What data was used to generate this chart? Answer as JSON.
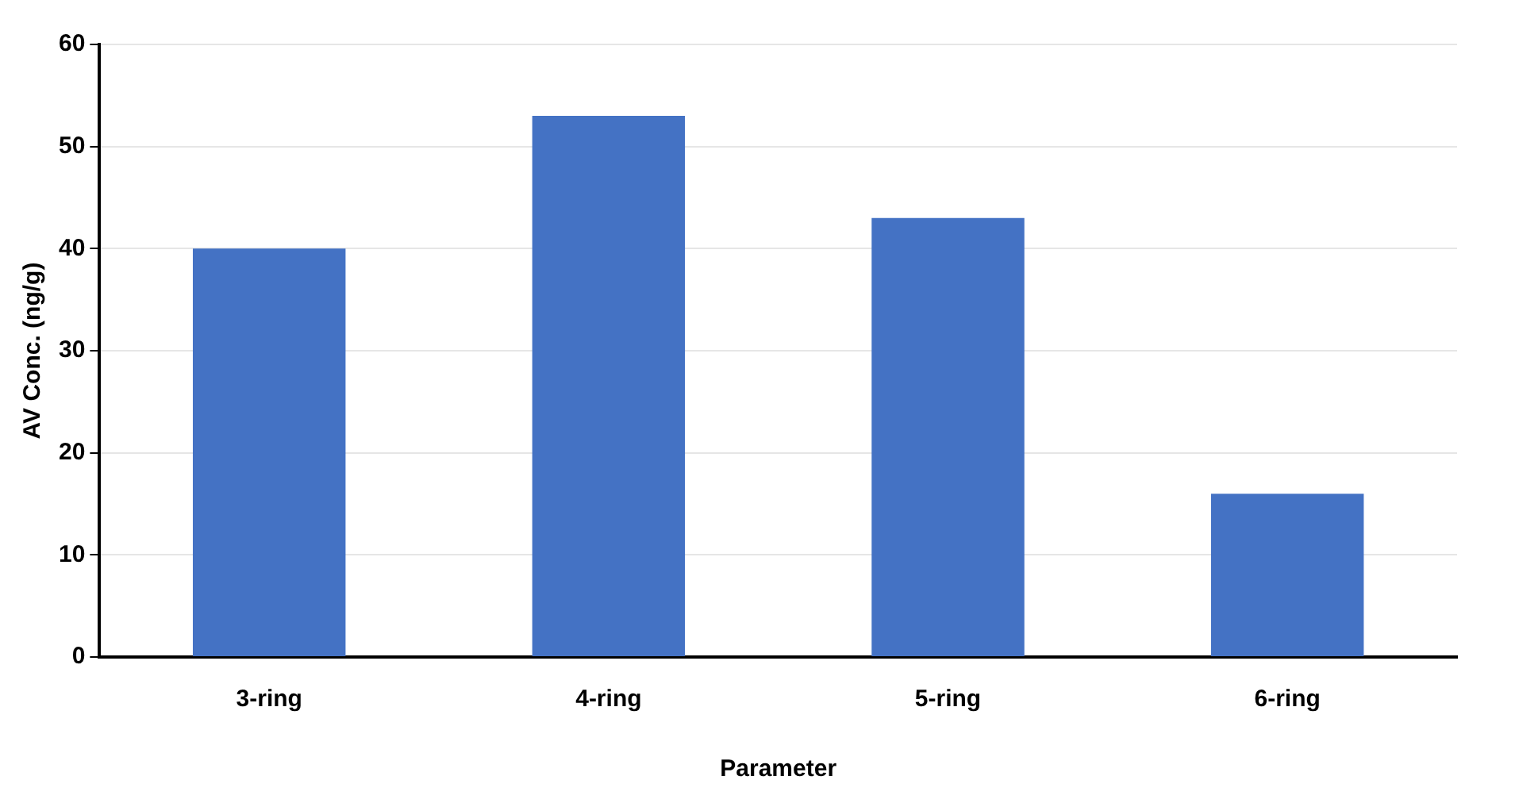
{
  "chart_data": {
    "type": "bar",
    "xlabel": "Parameter",
    "ylabel": "AV Conc. (ng/g)",
    "categories": [
      "3-ring",
      "4-ring",
      "5-ring",
      "6-ring"
    ],
    "values": [
      40,
      53,
      43,
      16
    ],
    "color": "#4472c4",
    "ylim": [
      0,
      60
    ],
    "yticks": [
      0,
      10,
      20,
      30,
      40,
      50,
      60
    ],
    "grid": "y",
    "legend": false
  }
}
